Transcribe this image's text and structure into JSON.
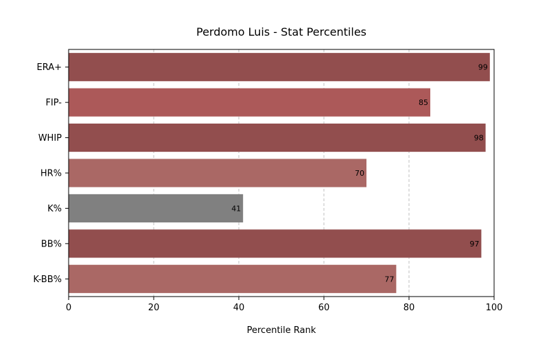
{
  "chart_data": {
    "type": "bar",
    "orientation": "horizontal",
    "title": "Perdomo Luis - Stat Percentiles",
    "xlabel": "Percentile Rank",
    "ylabel": "",
    "xlim": [
      0,
      100
    ],
    "xticks": [
      0,
      20,
      40,
      60,
      80,
      100
    ],
    "grid": "x-dashed",
    "categories": [
      "ERA+",
      "FIP-",
      "WHIP",
      "HR%",
      "K%",
      "BB%",
      "K-BB%"
    ],
    "values": [
      99,
      85,
      98,
      70,
      41,
      97,
      77
    ],
    "colors": [
      "#924e4e",
      "#ac5959",
      "#924e4e",
      "#aa6865",
      "#808080",
      "#924e4e",
      "#aa6865"
    ]
  }
}
